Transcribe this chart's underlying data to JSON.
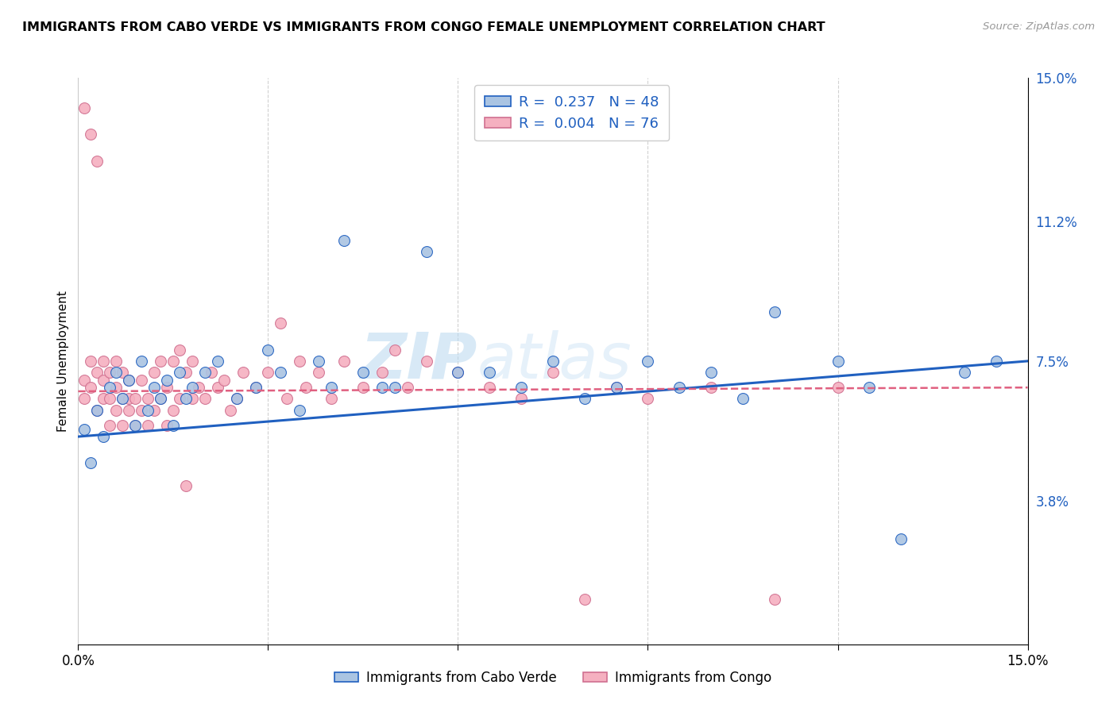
{
  "title": "IMMIGRANTS FROM CABO VERDE VS IMMIGRANTS FROM CONGO FEMALE UNEMPLOYMENT CORRELATION CHART",
  "source": "Source: ZipAtlas.com",
  "ylabel": "Female Unemployment",
  "x_min": 0.0,
  "x_max": 0.15,
  "y_min": 0.0,
  "y_max": 0.15,
  "y_tick_labels_right": [
    "3.8%",
    "7.5%",
    "11.2%",
    "15.0%"
  ],
  "y_tick_values_right": [
    0.038,
    0.075,
    0.112,
    0.15
  ],
  "legend_label1": "R =  0.237   N = 48",
  "legend_label2": "R =  0.004   N = 76",
  "cabo_verde_color": "#aac4e2",
  "congo_color": "#f5b0c0",
  "cabo_verde_line_color": "#2060c0",
  "congo_line_color": "#e06080",
  "watermark_zip": "ZIP",
  "watermark_atlas": "atlas",
  "bottom_label1": "Immigrants from Cabo Verde",
  "bottom_label2": "Immigrants from Congo",
  "cabo_verde_x": [
    0.001,
    0.002,
    0.003,
    0.004,
    0.005,
    0.006,
    0.007,
    0.008,
    0.009,
    0.01,
    0.011,
    0.012,
    0.013,
    0.014,
    0.015,
    0.016,
    0.017,
    0.018,
    0.02,
    0.022,
    0.025,
    0.028,
    0.03,
    0.032,
    0.035,
    0.038,
    0.04,
    0.042,
    0.045,
    0.048,
    0.05,
    0.055,
    0.06,
    0.065,
    0.07,
    0.075,
    0.08,
    0.085,
    0.09,
    0.095,
    0.1,
    0.105,
    0.11,
    0.12,
    0.125,
    0.13,
    0.14,
    0.145
  ],
  "cabo_verde_y": [
    0.057,
    0.048,
    0.062,
    0.055,
    0.068,
    0.072,
    0.065,
    0.07,
    0.058,
    0.075,
    0.062,
    0.068,
    0.065,
    0.07,
    0.058,
    0.072,
    0.065,
    0.068,
    0.072,
    0.075,
    0.065,
    0.068,
    0.078,
    0.072,
    0.062,
    0.075,
    0.068,
    0.107,
    0.072,
    0.068,
    0.068,
    0.104,
    0.072,
    0.072,
    0.068,
    0.075,
    0.065,
    0.068,
    0.075,
    0.068,
    0.072,
    0.065,
    0.088,
    0.075,
    0.068,
    0.028,
    0.072,
    0.075
  ],
  "congo_x": [
    0.001,
    0.001,
    0.001,
    0.002,
    0.002,
    0.002,
    0.003,
    0.003,
    0.003,
    0.004,
    0.004,
    0.004,
    0.005,
    0.005,
    0.005,
    0.006,
    0.006,
    0.006,
    0.007,
    0.007,
    0.007,
    0.008,
    0.008,
    0.008,
    0.009,
    0.009,
    0.01,
    0.01,
    0.011,
    0.011,
    0.012,
    0.012,
    0.013,
    0.013,
    0.014,
    0.014,
    0.015,
    0.015,
    0.016,
    0.016,
    0.017,
    0.017,
    0.018,
    0.018,
    0.019,
    0.02,
    0.021,
    0.022,
    0.023,
    0.024,
    0.025,
    0.026,
    0.028,
    0.03,
    0.032,
    0.033,
    0.035,
    0.036,
    0.038,
    0.04,
    0.042,
    0.045,
    0.048,
    0.05,
    0.052,
    0.055,
    0.06,
    0.065,
    0.07,
    0.075,
    0.08,
    0.085,
    0.09,
    0.1,
    0.11,
    0.12
  ],
  "congo_y": [
    0.065,
    0.07,
    0.142,
    0.068,
    0.075,
    0.135,
    0.062,
    0.072,
    0.128,
    0.065,
    0.07,
    0.075,
    0.058,
    0.065,
    0.072,
    0.062,
    0.068,
    0.075,
    0.058,
    0.065,
    0.072,
    0.062,
    0.065,
    0.07,
    0.058,
    0.065,
    0.062,
    0.07,
    0.058,
    0.065,
    0.062,
    0.072,
    0.065,
    0.075,
    0.058,
    0.068,
    0.062,
    0.075,
    0.065,
    0.078,
    0.042,
    0.072,
    0.065,
    0.075,
    0.068,
    0.065,
    0.072,
    0.068,
    0.07,
    0.062,
    0.065,
    0.072,
    0.068,
    0.072,
    0.085,
    0.065,
    0.075,
    0.068,
    0.072,
    0.065,
    0.075,
    0.068,
    0.072,
    0.078,
    0.068,
    0.075,
    0.072,
    0.068,
    0.065,
    0.072,
    0.012,
    0.068,
    0.065,
    0.068,
    0.012,
    0.068
  ],
  "cv_line_x0": 0.0,
  "cv_line_y0": 0.055,
  "cv_line_x1": 0.15,
  "cv_line_y1": 0.075,
  "congo_line_x0": 0.0,
  "congo_line_y0": 0.067,
  "congo_line_x1": 0.15,
  "congo_line_y1": 0.068
}
